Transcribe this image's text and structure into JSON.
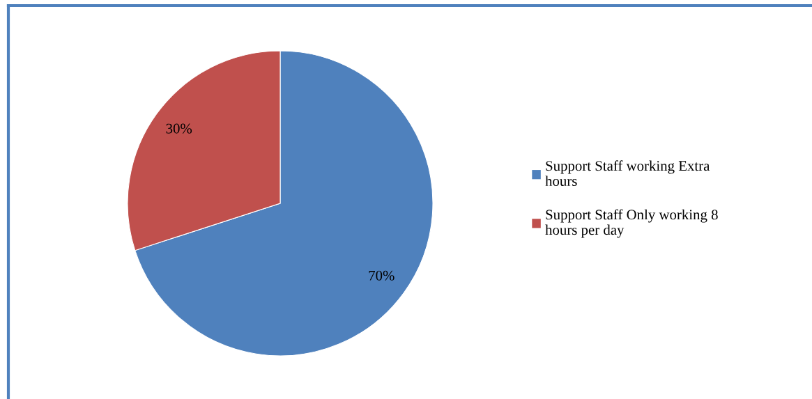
{
  "chart_data": {
    "type": "pie",
    "categories": [
      "Support Staff working Extra hours",
      "Support Staff Only working 8 hours per day"
    ],
    "values": [
      70,
      30
    ],
    "colors": [
      "#4f81bd",
      "#c0504d"
    ],
    "value_labels": [
      "70%",
      "30%"
    ],
    "legend": "right"
  }
}
